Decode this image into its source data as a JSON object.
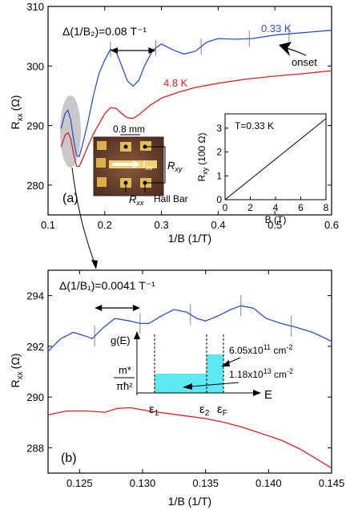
{
  "chart_data": [
    {
      "panel_label": "(a)",
      "type": "line",
      "xlabel": "1/B (1/T)",
      "ylabel_main": "R",
      "ylabel_sub": "xx",
      "ylabel_unit": "(Ω)",
      "xlim": [
        0.1,
        0.6
      ],
      "ylim": [
        275,
        310
      ],
      "xticks": [
        0.1,
        0.2,
        0.3,
        0.4,
        0.5,
        0.6
      ],
      "xtick_labels": [
        "0.1",
        "0.2",
        "0.3",
        "0.4",
        "0.5",
        "0.6"
      ],
      "yticks": [
        280,
        290,
        300,
        310
      ],
      "ytick_labels": [
        "280",
        "290",
        "300",
        "310"
      ],
      "annotation": "Δ(1/B₂)=0.08 T⁻¹",
      "annotation_span": [
        0.21,
        0.29
      ],
      "series": [
        {
          "name": "0.33 K",
          "color": "#2c4fd6",
          "points": [
            [
              0.123,
              289.5
            ],
            [
              0.13,
              292.0
            ],
            [
              0.135,
              292.6
            ],
            [
              0.14,
              291.0
            ],
            [
              0.145,
              287.6
            ],
            [
              0.15,
              285.0
            ],
            [
              0.155,
              284.8
            ],
            [
              0.16,
              286.5
            ],
            [
              0.17,
              290.5
            ],
            [
              0.18,
              295.0
            ],
            [
              0.19,
              298.8
            ],
            [
              0.2,
              301.0
            ],
            [
              0.21,
              302.8
            ],
            [
              0.22,
              302.4
            ],
            [
              0.23,
              300.0
            ],
            [
              0.24,
              297.5
            ],
            [
              0.25,
              296.6
            ],
            [
              0.26,
              297.6
            ],
            [
              0.27,
              300.0
            ],
            [
              0.285,
              302.7
            ],
            [
              0.3,
              303.7
            ],
            [
              0.32,
              302.7
            ],
            [
              0.34,
              302.0
            ],
            [
              0.36,
              302.5
            ],
            [
              0.38,
              304.0
            ],
            [
              0.4,
              304.6
            ],
            [
              0.43,
              304.5
            ],
            [
              0.46,
              304.6
            ],
            [
              0.5,
              305.2
            ],
            [
              0.55,
              305.6
            ],
            [
              0.6,
              306.0
            ]
          ]
        },
        {
          "name": "4.8 K",
          "color": "#dd2222",
          "points": [
            [
              0.123,
              286.4
            ],
            [
              0.13,
              288.4
            ],
            [
              0.135,
              288.8
            ],
            [
              0.14,
              287.8
            ],
            [
              0.145,
              285.2
            ],
            [
              0.15,
              283.2
            ],
            [
              0.155,
              283.1
            ],
            [
              0.16,
              284.2
            ],
            [
              0.17,
              286.5
            ],
            [
              0.18,
              288.6
            ],
            [
              0.19,
              290.3
            ],
            [
              0.2,
              292.0
            ],
            [
              0.21,
              293.0
            ],
            [
              0.22,
              292.9
            ],
            [
              0.23,
              292.0
            ],
            [
              0.24,
              291.3
            ],
            [
              0.25,
              291.2
            ],
            [
              0.26,
              291.8
            ],
            [
              0.28,
              293.4
            ],
            [
              0.3,
              294.6
            ],
            [
              0.33,
              295.6
            ],
            [
              0.36,
              296.4
            ],
            [
              0.4,
              297.1
            ],
            [
              0.45,
              297.8
            ],
            [
              0.5,
              298.3
            ],
            [
              0.55,
              298.7
            ],
            [
              0.6,
              299.2
            ]
          ]
        }
      ],
      "ticks_at": [
        0.21,
        0.29,
        0.37,
        0.455,
        0.525
      ],
      "labels": {
        "blue_temp": "0.33 K",
        "red_temp": "4.8 K",
        "onset": "onset"
      },
      "inset_photo": {
        "scale": "0.8 mm",
        "current_main": "I",
        "current_sub": "xx",
        "rxy_main": "R",
        "rxy_sub": "xy",
        "rxx_main": "R",
        "rxx_sub": "xx",
        "caption": "Hall Bar"
      },
      "inset_plot": {
        "title": "T=0.33 K",
        "xlabel": "B (T)",
        "ylabel_main": "R",
        "ylabel_sub": "xy",
        "ylabel_unit": "(100 Ω)",
        "xlim": [
          0,
          8
        ],
        "ylim": [
          0,
          3.6
        ],
        "xticks": [
          0,
          2,
          4,
          6,
          8
        ],
        "xtick_labels": [
          "0",
          "2",
          "4",
          "6",
          "8"
        ],
        "yticks": [
          0,
          1,
          2,
          3
        ],
        "ytick_labels": [
          "0",
          "1",
          "2",
          "3"
        ],
        "points": [
          [
            0,
            0
          ],
          [
            8,
            3.4
          ]
        ]
      }
    },
    {
      "panel_label": "(b)",
      "type": "line",
      "xlabel": "1/B (1/T)",
      "ylabel_main": "R",
      "ylabel_sub": "xx",
      "ylabel_unit": "(Ω)",
      "xlim": [
        0.1225,
        0.145
      ],
      "ylim": [
        287,
        295
      ],
      "xticks": [
        0.125,
        0.13,
        0.135,
        0.14,
        0.145
      ],
      "xtick_labels": [
        "0.125",
        "0.130",
        "0.135",
        "0.140",
        "0.145"
      ],
      "yticks": [
        288,
        290,
        292,
        294
      ],
      "ytick_labels": [
        "288",
        "290",
        "292",
        "294"
      ],
      "annotation": "Δ(1/B₁)=0.0041 T⁻¹",
      "annotation_span": [
        0.1262,
        0.1298
      ],
      "series": [
        {
          "name": "0.33 K",
          "color": "#2c4fd6",
          "points": [
            [
              0.1225,
              291.8
            ],
            [
              0.1235,
              292.3
            ],
            [
              0.1245,
              292.55
            ],
            [
              0.1255,
              292.4
            ],
            [
              0.126,
              292.3
            ],
            [
              0.1268,
              292.7
            ],
            [
              0.1278,
              293.1
            ],
            [
              0.129,
              293.0
            ],
            [
              0.1298,
              292.9
            ],
            [
              0.1305,
              292.9
            ],
            [
              0.1315,
              293.2
            ],
            [
              0.1325,
              293.45
            ],
            [
              0.1335,
              293.35
            ],
            [
              0.1343,
              293.1
            ],
            [
              0.135,
              293.0
            ],
            [
              0.136,
              293.2
            ],
            [
              0.137,
              293.45
            ],
            [
              0.1378,
              293.6
            ],
            [
              0.1388,
              293.5
            ],
            [
              0.1398,
              293.1
            ],
            [
              0.141,
              292.9
            ],
            [
              0.1422,
              292.75
            ],
            [
              0.1435,
              292.55
            ],
            [
              0.145,
              292.2
            ]
          ]
        },
        {
          "name": "4.8 K",
          "color": "#dd2222",
          "points": [
            [
              0.1225,
              289.3
            ],
            [
              0.124,
              289.45
            ],
            [
              0.1255,
              289.45
            ],
            [
              0.127,
              289.4
            ],
            [
              0.128,
              289.55
            ],
            [
              0.129,
              289.58
            ],
            [
              0.1305,
              289.45
            ],
            [
              0.132,
              289.35
            ],
            [
              0.1335,
              289.25
            ],
            [
              0.135,
              289.15
            ],
            [
              0.1365,
              289.0
            ],
            [
              0.138,
              288.8
            ],
            [
              0.1395,
              288.55
            ],
            [
              0.141,
              288.3
            ],
            [
              0.1425,
              287.95
            ],
            [
              0.1435,
              287.65
            ],
            [
              0.145,
              287.2
            ]
          ]
        }
      ],
      "ticks_at": [
        0.1262,
        0.1298,
        0.1338,
        0.1378,
        0.1418
      ],
      "inset_dos": {
        "ylabel": "g(E)",
        "xlabel": "E",
        "level_num": "m*",
        "level_den": "πħ²",
        "e1_main": "ε",
        "e1_sub": "1",
        "e2_main": "ε",
        "e2_sub": "2",
        "ef_main": "ε",
        "ef_sub": "F",
        "dens_high_base": "6.05x10",
        "dens_high_exp": "11",
        "dens_high_unit": " cm",
        "dens_high_unit_exp": "-2",
        "dens_low_base": "1.18x10",
        "dens_low_exp": "13",
        "dens_low_unit": " cm",
        "dens_low_unit_exp": "-2",
        "fill_color": "#5ee8f2"
      }
    }
  ]
}
